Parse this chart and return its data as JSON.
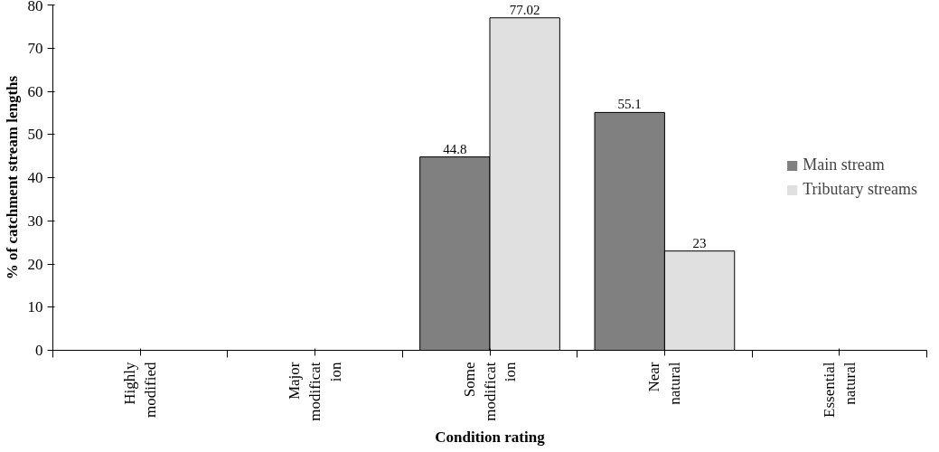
{
  "chart_data": {
    "type": "bar",
    "xlabel": "Condition rating",
    "ylabel": "% of catchment stream lengths",
    "categories": [
      "Highly\nmodified",
      "Major\nmodificat\nion",
      "Some\nmodificat\nion",
      "Near\nnatural",
      "Essential\nnatural"
    ],
    "series": [
      {
        "name": "Main stream",
        "color": "#808080",
        "values": [
          0,
          0,
          44.8,
          55.1,
          0
        ],
        "value_labels": [
          null,
          null,
          "44.8",
          "55.1",
          null
        ]
      },
      {
        "name": "Tributary streams",
        "color": "#e0e0e0",
        "values": [
          0,
          0,
          77.02,
          23,
          0
        ],
        "value_labels": [
          null,
          null,
          "77.02",
          "23",
          null
        ]
      }
    ],
    "ylim": [
      0,
      80
    ],
    "yticks": [
      0,
      10,
      20,
      30,
      40,
      50,
      60,
      70,
      80
    ],
    "grid": false,
    "legend": "right"
  }
}
